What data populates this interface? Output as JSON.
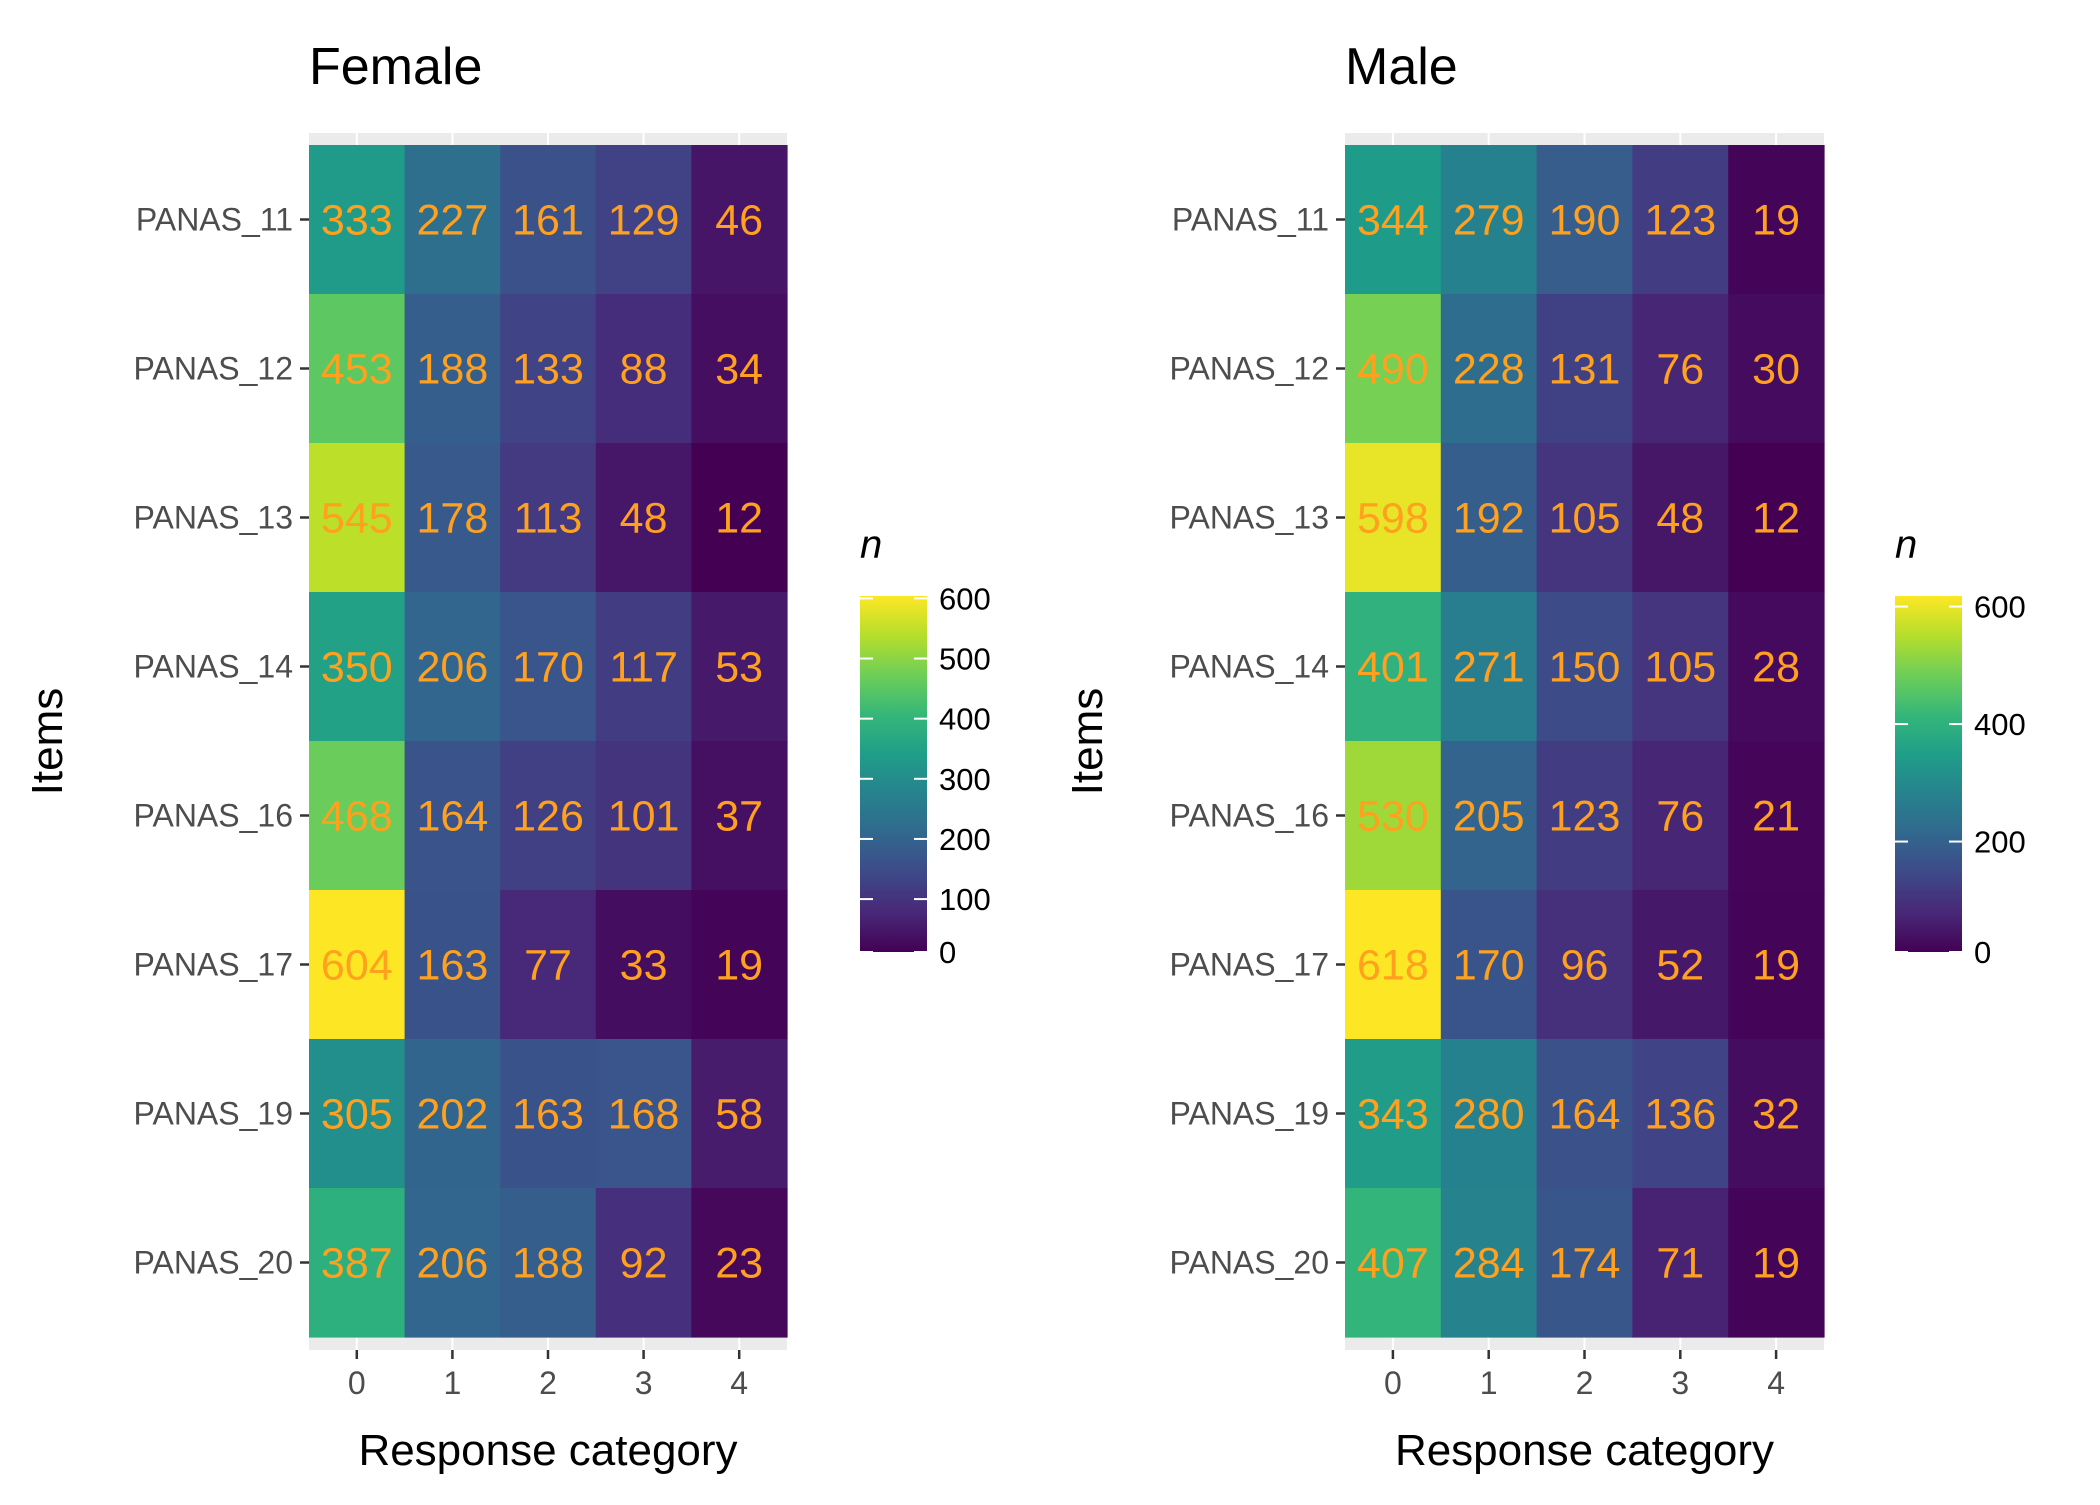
{
  "chart_data": [
    {
      "type": "heatmap",
      "title": "Female",
      "xlabel": "Response category",
      "ylabel": "Items",
      "categories": [
        "0",
        "1",
        "2",
        "3",
        "4"
      ],
      "rows": [
        "PANAS_11",
        "PANAS_12",
        "PANAS_13",
        "PANAS_14",
        "PANAS_16",
        "PANAS_17",
        "PANAS_19",
        "PANAS_20"
      ],
      "values": [
        [
          333,
          227,
          161,
          129,
          46
        ],
        [
          453,
          188,
          133,
          88,
          34
        ],
        [
          545,
          178,
          113,
          48,
          12
        ],
        [
          350,
          206,
          170,
          117,
          53
        ],
        [
          468,
          164,
          126,
          101,
          37
        ],
        [
          604,
          163,
          77,
          33,
          19
        ],
        [
          305,
          202,
          163,
          168,
          58
        ],
        [
          387,
          206,
          188,
          92,
          23
        ]
      ],
      "legend": {
        "title": "n",
        "ticks": [
          "0",
          "100",
          "200",
          "300",
          "400",
          "500",
          "600"
        ],
        "tick_values": [
          0,
          100,
          200,
          300,
          400,
          500,
          600
        ],
        "range": [
          12,
          604
        ]
      },
      "colormap": "viridis",
      "label_color": "#ffa01e"
    },
    {
      "type": "heatmap",
      "title": "Male",
      "xlabel": "Response category",
      "ylabel": "Items",
      "categories": [
        "0",
        "1",
        "2",
        "3",
        "4"
      ],
      "rows": [
        "PANAS_11",
        "PANAS_12",
        "PANAS_13",
        "PANAS_14",
        "PANAS_16",
        "PANAS_17",
        "PANAS_19",
        "PANAS_20"
      ],
      "values": [
        [
          344,
          279,
          190,
          123,
          19
        ],
        [
          490,
          228,
          131,
          76,
          30
        ],
        [
          598,
          192,
          105,
          48,
          12
        ],
        [
          401,
          271,
          150,
          105,
          28
        ],
        [
          530,
          205,
          123,
          76,
          21
        ],
        [
          618,
          170,
          96,
          52,
          19
        ],
        [
          343,
          280,
          164,
          136,
          32
        ],
        [
          407,
          284,
          174,
          71,
          19
        ]
      ],
      "legend": {
        "title": "n",
        "ticks": [
          "0",
          "200",
          "400",
          "600"
        ],
        "tick_values": [
          0,
          200,
          400,
          600
        ],
        "range": [
          12,
          618
        ]
      },
      "colormap": "viridis",
      "label_color": "#ffa01e"
    }
  ]
}
